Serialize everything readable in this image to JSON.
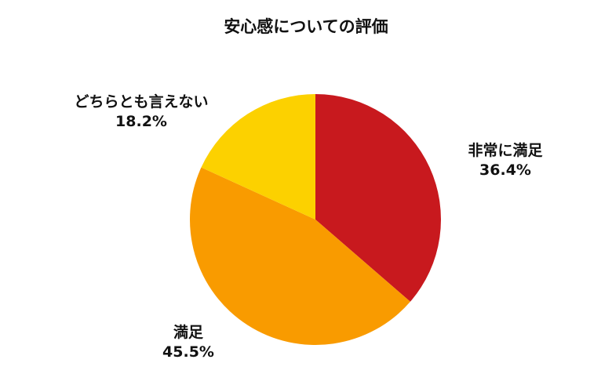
{
  "chart_data": {
    "type": "pie",
    "title": "安心感についての評価",
    "categories": [
      "非常に満足",
      "満足",
      "どちらとも言えない"
    ],
    "values": [
      36.4,
      45.5,
      18.2
    ],
    "value_labels": [
      "36.4%",
      "45.5%",
      "18.2%"
    ],
    "colors": [
      "#c8191e",
      "#f99b00",
      "#fcd100"
    ],
    "start_angle": "12 o'clock",
    "direction": "clockwise",
    "legend": "none"
  }
}
